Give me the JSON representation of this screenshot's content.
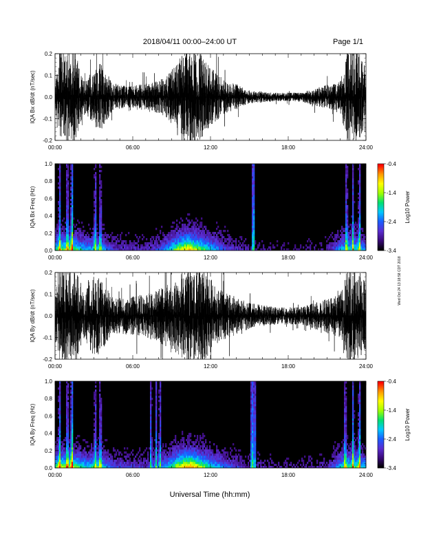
{
  "header": {
    "title": "2018/04/11   00:00–24:00 UT",
    "page": "Page 1/1"
  },
  "side_note": "Wed Oct 24 13:18:58 CDT 2018",
  "xaxis": {
    "label": "Universal Time (hh:mm)",
    "ticks": [
      "00:00",
      "06:00",
      "12:00",
      "18:00",
      "24:00"
    ]
  },
  "colors": {
    "trace": "#000000",
    "background": "#000000",
    "colormap": [
      "#000000",
      "#3a0a78",
      "#5b2dd0",
      "#1a5cff",
      "#00c8ff",
      "#00e070",
      "#a0ff00",
      "#ffff00",
      "#ff9900",
      "#ff0000"
    ]
  },
  "chart_data": [
    {
      "type": "line",
      "ylabel": "IQA Bx dB/dt (nT/sec)",
      "xlim": [
        0,
        24
      ],
      "ylim": [
        -0.2,
        0.2
      ],
      "yticks": [
        "0.2",
        "0.1",
        "0.0",
        "-0.1",
        "-0.2"
      ],
      "envelope": [
        {
          "t": 0.0,
          "amp": 0.06
        },
        {
          "t": 0.3,
          "amp": 0.22
        },
        {
          "t": 1.5,
          "amp": 0.22
        },
        {
          "t": 2.2,
          "amp": 0.08
        },
        {
          "t": 3.0,
          "amp": 0.12
        },
        {
          "t": 3.5,
          "amp": 0.16
        },
        {
          "t": 4.5,
          "amp": 0.06
        },
        {
          "t": 6.0,
          "amp": 0.05
        },
        {
          "t": 7.5,
          "amp": 0.07
        },
        {
          "t": 8.5,
          "amp": 0.09
        },
        {
          "t": 9.5,
          "amp": 0.16
        },
        {
          "t": 10.0,
          "amp": 0.22
        },
        {
          "t": 11.0,
          "amp": 0.22
        },
        {
          "t": 12.0,
          "amp": 0.14
        },
        {
          "t": 13.0,
          "amp": 0.08
        },
        {
          "t": 14.0,
          "amp": 0.06
        },
        {
          "t": 15.0,
          "amp": 0.03
        },
        {
          "t": 17.0,
          "amp": 0.02
        },
        {
          "t": 19.0,
          "amp": 0.02
        },
        {
          "t": 20.5,
          "amp": 0.05
        },
        {
          "t": 22.0,
          "amp": 0.07
        },
        {
          "t": 22.6,
          "amp": 0.22
        },
        {
          "t": 23.4,
          "amp": 0.22
        },
        {
          "t": 24.0,
          "amp": 0.12
        }
      ]
    },
    {
      "type": "heatmap",
      "ylabel": "IQA Bx Freq (Hz)",
      "xlim": [
        0,
        24
      ],
      "ylim": [
        0,
        1
      ],
      "yticks": [
        "1.0",
        "0.8",
        "0.6",
        "0.4",
        "0.2",
        "0.0"
      ],
      "colorbar": {
        "label": "Log10 Power",
        "min": -3.4,
        "max": -0.4,
        "ticks": [
          "-0.4",
          "-1.4",
          "-2.4",
          "-3.4"
        ]
      },
      "activity": [
        {
          "t": 0.0,
          "v": 0.45
        },
        {
          "t": 0.5,
          "v": 0.55
        },
        {
          "t": 1.3,
          "v": 0.55
        },
        {
          "t": 2.5,
          "v": 0.35
        },
        {
          "t": 3.3,
          "v": 0.45
        },
        {
          "t": 4.5,
          "v": 0.2
        },
        {
          "t": 7.0,
          "v": 0.15
        },
        {
          "t": 8.5,
          "v": 0.3
        },
        {
          "t": 9.7,
          "v": 0.65
        },
        {
          "t": 10.3,
          "v": 0.75
        },
        {
          "t": 11.5,
          "v": 0.5
        },
        {
          "t": 13.0,
          "v": 0.25
        },
        {
          "t": 15.0,
          "v": 0.12
        },
        {
          "t": 18.0,
          "v": 0.08
        },
        {
          "t": 21.0,
          "v": 0.12
        },
        {
          "t": 22.5,
          "v": 0.45
        },
        {
          "t": 23.5,
          "v": 0.45
        },
        {
          "t": 24.0,
          "v": 0.3
        }
      ],
      "bursts": [
        {
          "t": 0.35,
          "v": 0.55
        },
        {
          "t": 0.95,
          "v": 0.6
        },
        {
          "t": 1.3,
          "v": 0.75
        },
        {
          "t": 3.1,
          "v": 0.5
        },
        {
          "t": 3.5,
          "v": 0.55
        },
        {
          "t": 15.3,
          "v": 0.9
        },
        {
          "t": 22.5,
          "v": 0.6
        },
        {
          "t": 23.0,
          "v": 0.5
        },
        {
          "t": 23.5,
          "v": 0.55
        }
      ]
    },
    {
      "type": "line",
      "ylabel": "IQA By dB/dt (nT/sec)",
      "xlim": [
        0,
        24
      ],
      "ylim": [
        -0.2,
        0.2
      ],
      "yticks": [
        "0.2",
        "0.1",
        "0.0",
        "-0.1",
        "-0.2"
      ],
      "envelope": [
        {
          "t": 0.0,
          "amp": 0.08
        },
        {
          "t": 0.3,
          "amp": 0.22
        },
        {
          "t": 1.6,
          "amp": 0.22
        },
        {
          "t": 2.2,
          "amp": 0.1
        },
        {
          "t": 3.0,
          "amp": 0.2
        },
        {
          "t": 3.6,
          "amp": 0.16
        },
        {
          "t": 4.5,
          "amp": 0.08
        },
        {
          "t": 6.0,
          "amp": 0.09
        },
        {
          "t": 7.5,
          "amp": 0.11
        },
        {
          "t": 8.5,
          "amp": 0.14
        },
        {
          "t": 9.5,
          "amp": 0.18
        },
        {
          "t": 10.0,
          "amp": 0.22
        },
        {
          "t": 11.5,
          "amp": 0.22
        },
        {
          "t": 12.5,
          "amp": 0.13
        },
        {
          "t": 13.5,
          "amp": 0.1
        },
        {
          "t": 15.0,
          "amp": 0.06
        },
        {
          "t": 17.0,
          "amp": 0.04
        },
        {
          "t": 19.0,
          "amp": 0.04
        },
        {
          "t": 20.5,
          "amp": 0.07
        },
        {
          "t": 22.0,
          "amp": 0.1
        },
        {
          "t": 22.6,
          "amp": 0.22
        },
        {
          "t": 23.4,
          "amp": 0.22
        },
        {
          "t": 24.0,
          "amp": 0.15
        }
      ]
    },
    {
      "type": "heatmap",
      "ylabel": "IQA By Freq (Hz)",
      "xlim": [
        0,
        24
      ],
      "ylim": [
        0,
        1
      ],
      "yticks": [
        "1.0",
        "0.8",
        "0.6",
        "0.4",
        "0.2",
        "0.0"
      ],
      "colorbar": {
        "label": "Log10 Power",
        "min": -3.4,
        "max": -0.4,
        "ticks": [
          "-0.4",
          "-1.4",
          "-2.4",
          "-3.4"
        ]
      },
      "activity": [
        {
          "t": 0.0,
          "v": 0.5
        },
        {
          "t": 0.5,
          "v": 0.6
        },
        {
          "t": 1.3,
          "v": 0.6
        },
        {
          "t": 2.5,
          "v": 0.4
        },
        {
          "t": 3.3,
          "v": 0.5
        },
        {
          "t": 4.5,
          "v": 0.25
        },
        {
          "t": 7.0,
          "v": 0.2
        },
        {
          "t": 8.5,
          "v": 0.35
        },
        {
          "t": 9.7,
          "v": 0.7
        },
        {
          "t": 10.5,
          "v": 0.8
        },
        {
          "t": 11.5,
          "v": 0.55
        },
        {
          "t": 13.0,
          "v": 0.3
        },
        {
          "t": 15.0,
          "v": 0.15
        },
        {
          "t": 18.0,
          "v": 0.1
        },
        {
          "t": 21.0,
          "v": 0.15
        },
        {
          "t": 22.5,
          "v": 0.5
        },
        {
          "t": 23.5,
          "v": 0.5
        },
        {
          "t": 24.0,
          "v": 0.35
        }
      ],
      "bursts": [
        {
          "t": 0.35,
          "v": 0.6
        },
        {
          "t": 0.95,
          "v": 0.6
        },
        {
          "t": 1.3,
          "v": 0.8
        },
        {
          "t": 3.1,
          "v": 0.5
        },
        {
          "t": 3.5,
          "v": 0.55
        },
        {
          "t": 7.4,
          "v": 0.5
        },
        {
          "t": 7.8,
          "v": 0.45
        },
        {
          "t": 8.1,
          "v": 0.5
        },
        {
          "t": 15.2,
          "v": 0.85
        },
        {
          "t": 15.4,
          "v": 0.75
        },
        {
          "t": 22.4,
          "v": 0.6
        },
        {
          "t": 23.0,
          "v": 0.55
        },
        {
          "t": 23.5,
          "v": 0.6
        }
      ]
    }
  ]
}
